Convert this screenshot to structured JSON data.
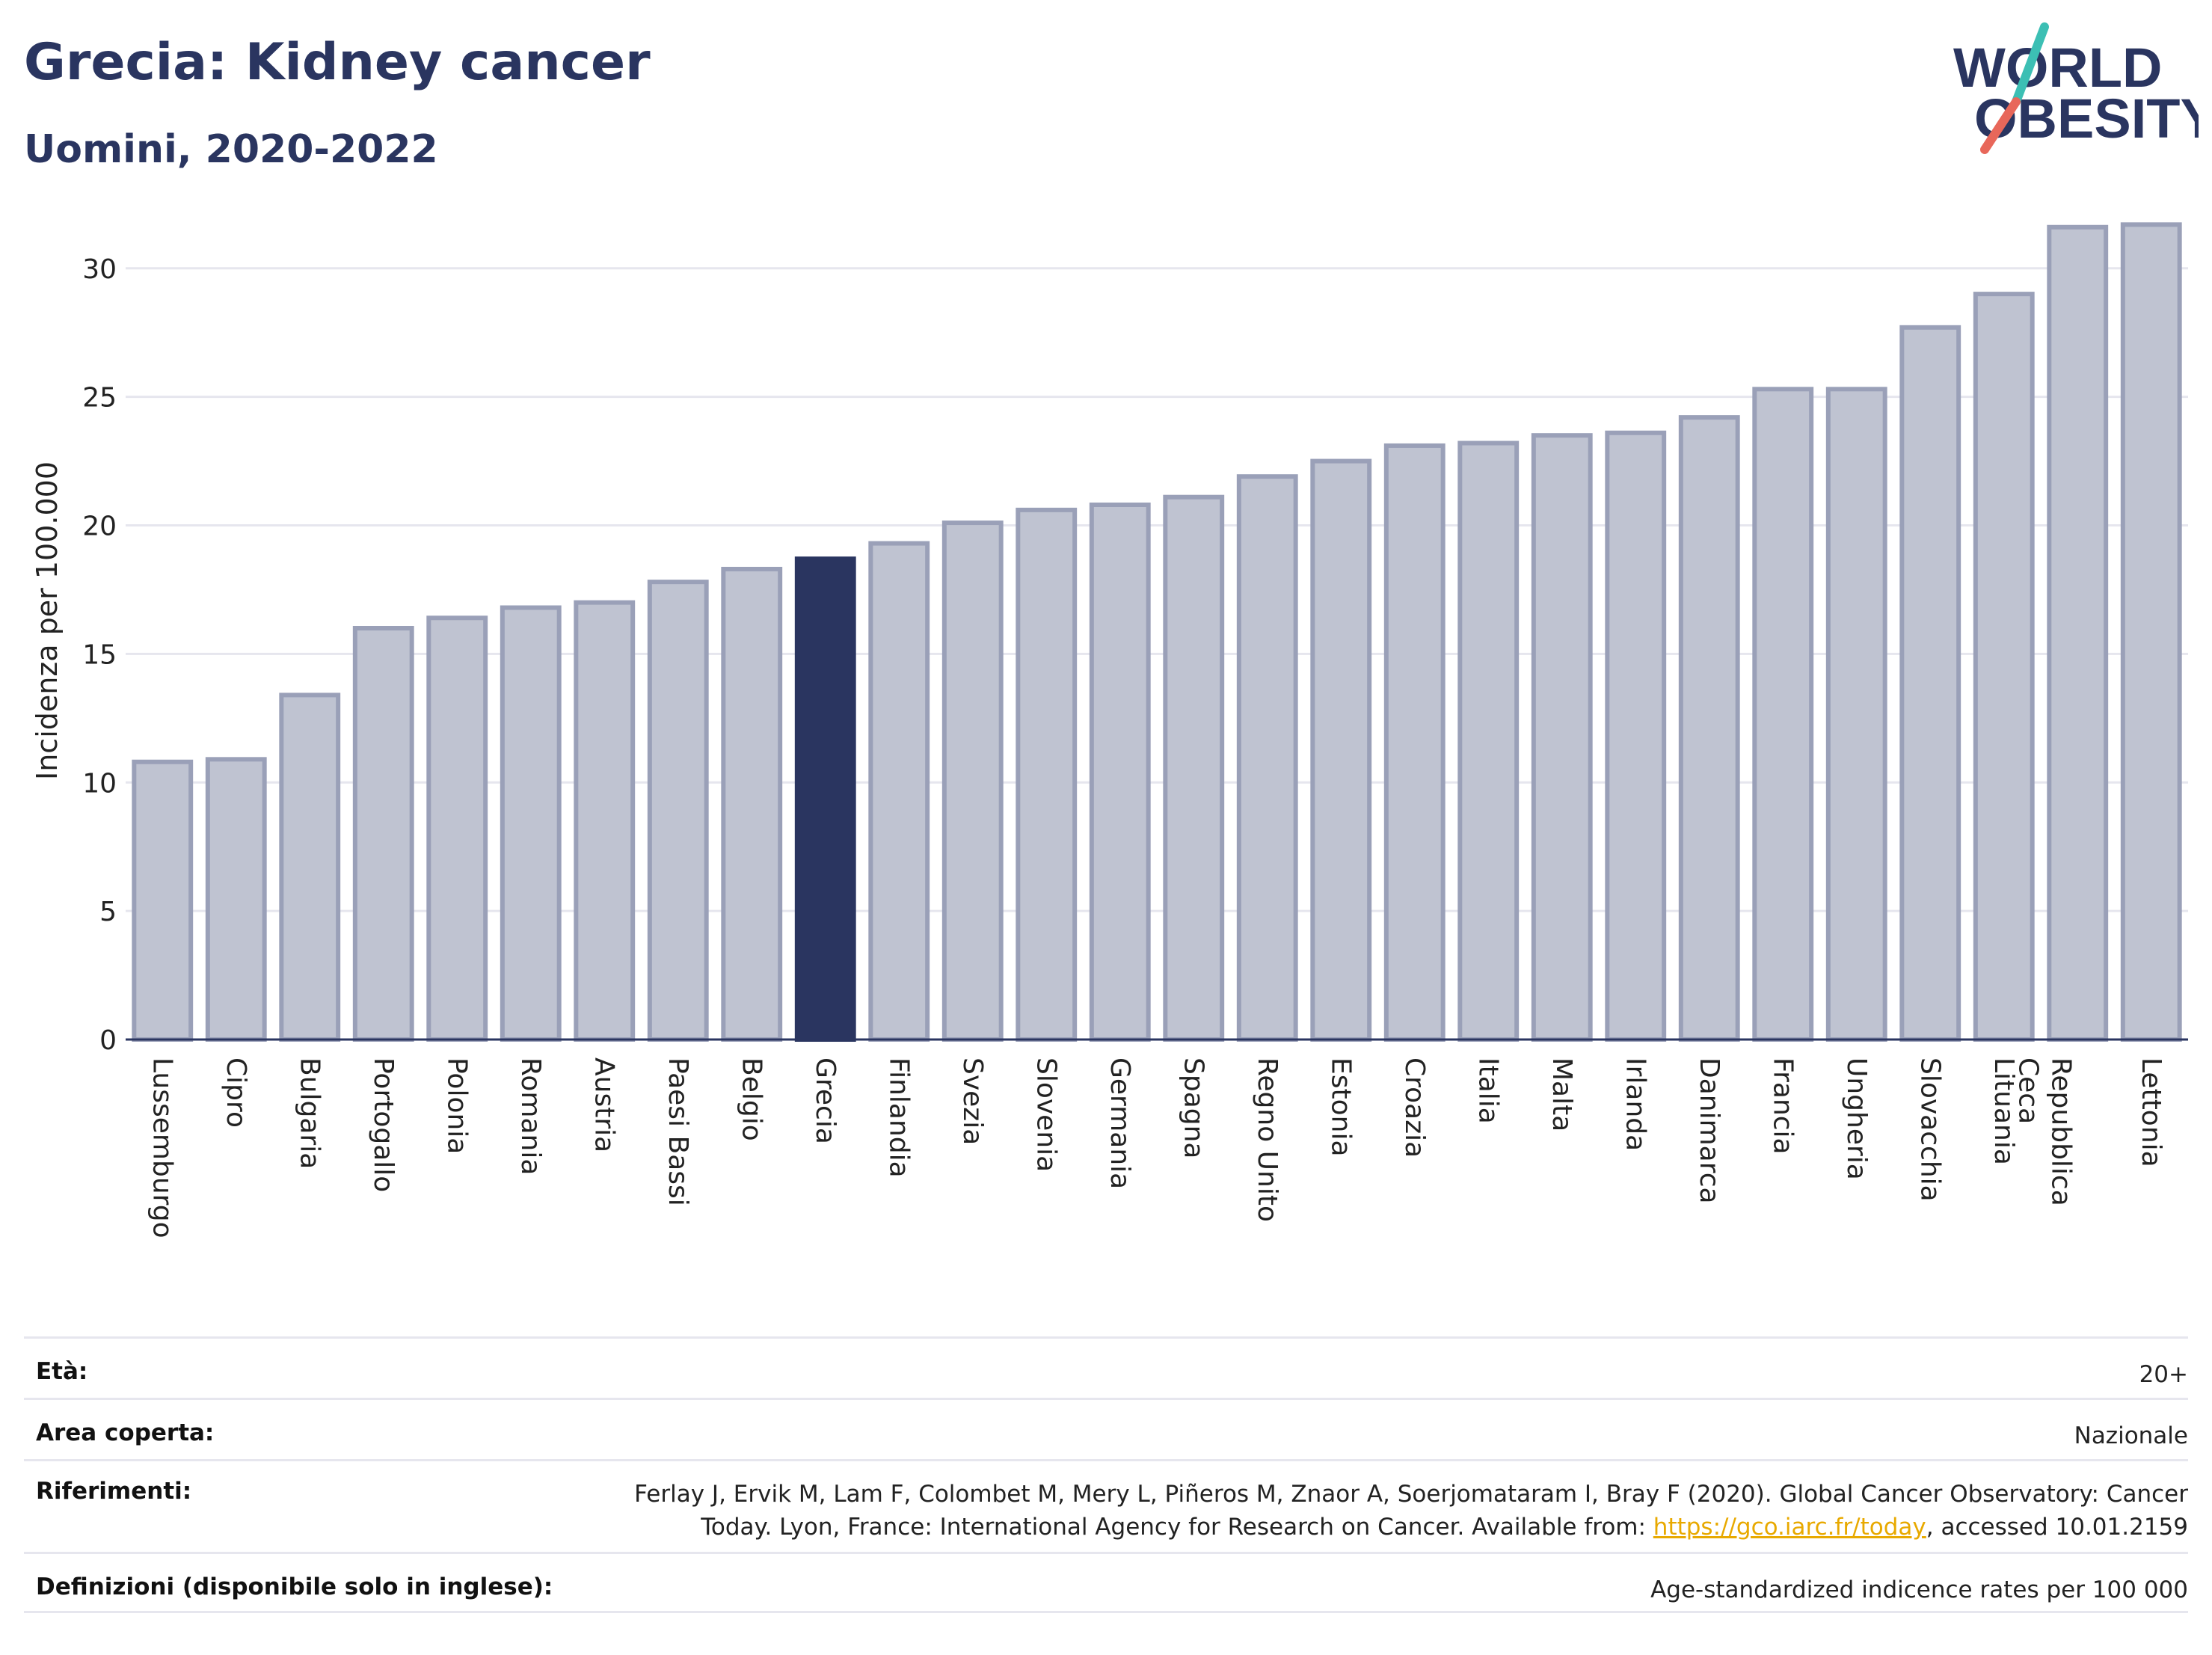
{
  "header": {
    "title": "Grecia: Kidney cancer",
    "subtitle": "Uomini, 2020-2022"
  },
  "logo": {
    "line1": "WORLD",
    "line2": "OBESITY",
    "icon": "world-obesity-logo"
  },
  "colors": {
    "title": "#2a3560",
    "bar": "#bfc3d1",
    "bar_border": "#9aa0b8",
    "highlight": "#2a3560",
    "accent_teal": "#3cbfb4",
    "accent_red": "#e8675a"
  },
  "chart_data": {
    "type": "bar",
    "ylabel": "Incidenza per 100.000",
    "xlabel": "",
    "ylim": [
      0,
      32
    ],
    "yticks": [
      0,
      5,
      10,
      15,
      20,
      25,
      30
    ],
    "grid": true,
    "highlight": "Grecia",
    "categories": [
      "Lussemburgo",
      "Cipro",
      "Bulgaria",
      "Portogallo",
      "Polonia",
      "Romania",
      "Austria",
      "Paesi Bassi",
      "Belgio",
      "Grecia",
      "Finlandia",
      "Svezia",
      "Slovenia",
      "Germania",
      "Spagna",
      "Regno Unito",
      "Estonia",
      "Croazia",
      "Italia",
      "Malta",
      "Irlanda",
      "Danimarca",
      "Francia",
      "Ungheria",
      "Slovacchia",
      "Lituania",
      "Repubblica Ceca",
      "Lettonia"
    ],
    "values": [
      10.8,
      10.9,
      13.4,
      16.0,
      16.4,
      16.8,
      17.0,
      17.8,
      18.3,
      18.7,
      19.3,
      20.1,
      20.6,
      20.8,
      21.1,
      21.9,
      22.5,
      23.1,
      23.2,
      23.5,
      23.6,
      24.2,
      25.3,
      25.3,
      27.7,
      29.0,
      31.6,
      31.7
    ]
  },
  "info": {
    "age_label": "Età:",
    "age_value": "20+",
    "area_label": "Area coperta:",
    "area_value": "Nazionale",
    "refs_label": "Riferimenti:",
    "refs_line1": "Ferlay J, Ervik M, Lam F, Colombet M, Mery L, Piñeros M, Znaor A, Soerjomataram I, Bray F (2020). Global Cancer Observatory: Cancer",
    "refs_line2_pre": "Today. Lyon, France: International Agency for Research on Cancer. Available from: ",
    "refs_link": "https://gco.iarc.fr/today",
    "refs_line2_post": ", accessed 10.01.2159",
    "defs_label": "Definizioni (disponibile solo in inglese):",
    "defs_value": "Age-standardized indicence rates per 100 000"
  }
}
